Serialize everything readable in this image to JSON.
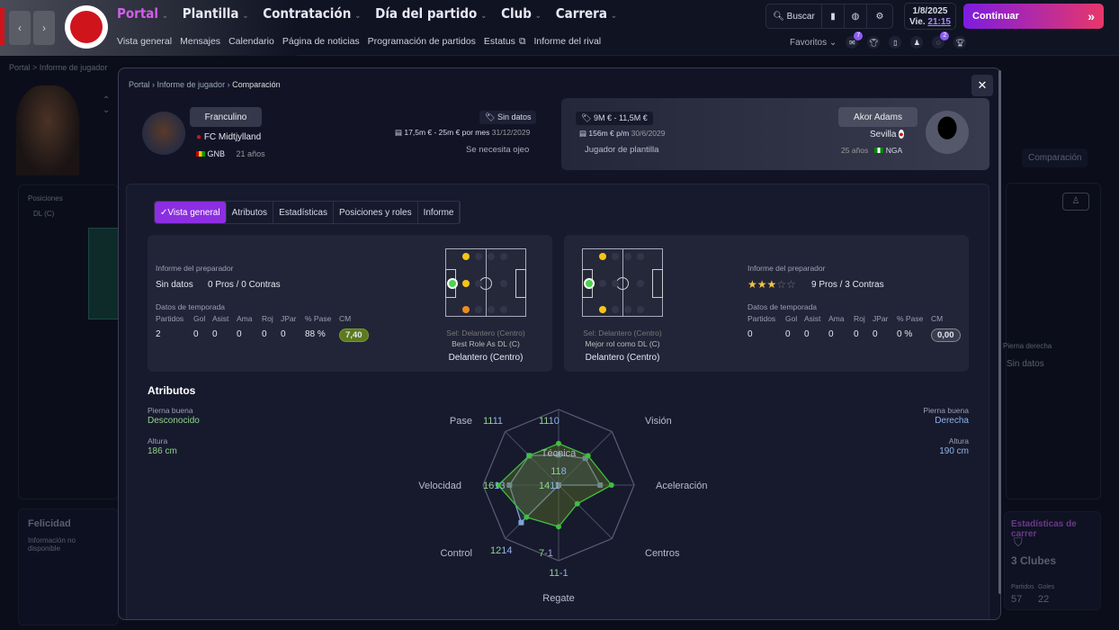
{
  "topbar": {
    "nav": [
      {
        "label": "Portal",
        "active": true
      },
      {
        "label": "Plantilla"
      },
      {
        "label": "Contratación"
      },
      {
        "label": "Día del partido"
      },
      {
        "label": "Club"
      },
      {
        "label": "Carrera"
      }
    ],
    "subnav": [
      "Vista general",
      "Mensajes",
      "Calendario",
      "Página de noticias",
      "Programación de partidos",
      "Estatus",
      "Informe del rival"
    ],
    "search_label": "Buscar",
    "date": "1/8/2025",
    "day": "Vie.",
    "time": "21:15",
    "continue_label": "Continuar",
    "favorites_label": "Favoritos",
    "badges": {
      "messages": "7",
      "inbox": "2"
    },
    "accent": "#d25ee8"
  },
  "background": {
    "breadcrumb": "Portal > Informe de jugador",
    "positions_label": "Posiciones",
    "position": "DL (C)",
    "happiness_title": "Felicidad",
    "happiness_text": "Información no disponible",
    "compare_button": "Comparación",
    "foot_label": "Pierna derecha",
    "foot_value": "Sin datos",
    "career_title": "Estadísticas de carrer",
    "clubs": "3 Clubes",
    "career_stats": [
      {
        "label": "Partidos",
        "value": "57"
      },
      {
        "label": "Goles",
        "value": "22"
      }
    ]
  },
  "modal": {
    "breadcrumb": [
      "Portal",
      "Informe de jugador",
      "Comparación"
    ],
    "player1": {
      "name": "Franculino",
      "club": "FC Midtjylland",
      "nation": "GNB",
      "age": "21 años",
      "value": "Sin datos",
      "contract": "17,5m € - 25m € por mes",
      "contract_end": "31/12/2029",
      "status": "Se necesita ojeo"
    },
    "player2": {
      "name": "Akor Adams",
      "club": "Sevilla",
      "nation": "NGA",
      "age": "25 años",
      "value": "9M € - 11,5M €",
      "contract": "156m € p/m",
      "contract_end": "30/6/2029",
      "status": "Jugador de plantilla"
    },
    "tabs": [
      "Vista general",
      "Atributos",
      "Estadísticas",
      "Posiciones y roles",
      "Informe"
    ],
    "coach_label": "Informe del preparador",
    "season_label": "Datos de temporada",
    "stat_headers": [
      "Partidos",
      "Gol",
      "Asist",
      "Ama",
      "Roj",
      "JPar",
      "% Pase",
      "CM"
    ],
    "card1": {
      "coach_rating": "Sin datos",
      "pros_cons": "0 Pros / 0 Contras",
      "stats": [
        "2",
        "0",
        "0",
        "0",
        "0",
        "0",
        "88 %",
        "7,40"
      ],
      "sel": "Sel: Delantero (Centro)",
      "best_role": "Best Role As DL (C)",
      "position": "Delantero (Centro)"
    },
    "card2": {
      "stars": 3,
      "stars_max": 5,
      "pros_cons": "9 Pros / 3 Contras",
      "stats": [
        "0",
        "0",
        "0",
        "0",
        "0",
        "0",
        "0 %",
        "0,00"
      ],
      "sel": "Sel: Delantero (Centro)",
      "best_role": "Mejor rol como DL (C)",
      "position": "Delantero (Centro)"
    },
    "attributes_title": "Atributos",
    "left_attrs": {
      "foot_label": "Pierna buena",
      "foot": "Desconocido",
      "height_label": "Altura",
      "height": "186 cm"
    },
    "right_attrs": {
      "foot_label": "Pierna buena",
      "foot": "Derecha",
      "height_label": "Altura",
      "height": "190 cm"
    }
  },
  "chart_data": {
    "type": "radar",
    "max": 20,
    "axes": [
      "Técnica",
      "Visión",
      "Aceleración",
      "Centros",
      "Regate",
      "Control",
      "Velocidad",
      "Pase"
    ],
    "series": [
      {
        "color": "#3fbf3f",
        "values": [
          11,
          11,
          14,
          7,
          11,
          12,
          16,
          11
        ]
      },
      {
        "color": "#7fa3d8",
        "values": [
          8,
          10,
          11,
          -1,
          -1,
          14,
          13,
          11
        ]
      }
    ]
  }
}
